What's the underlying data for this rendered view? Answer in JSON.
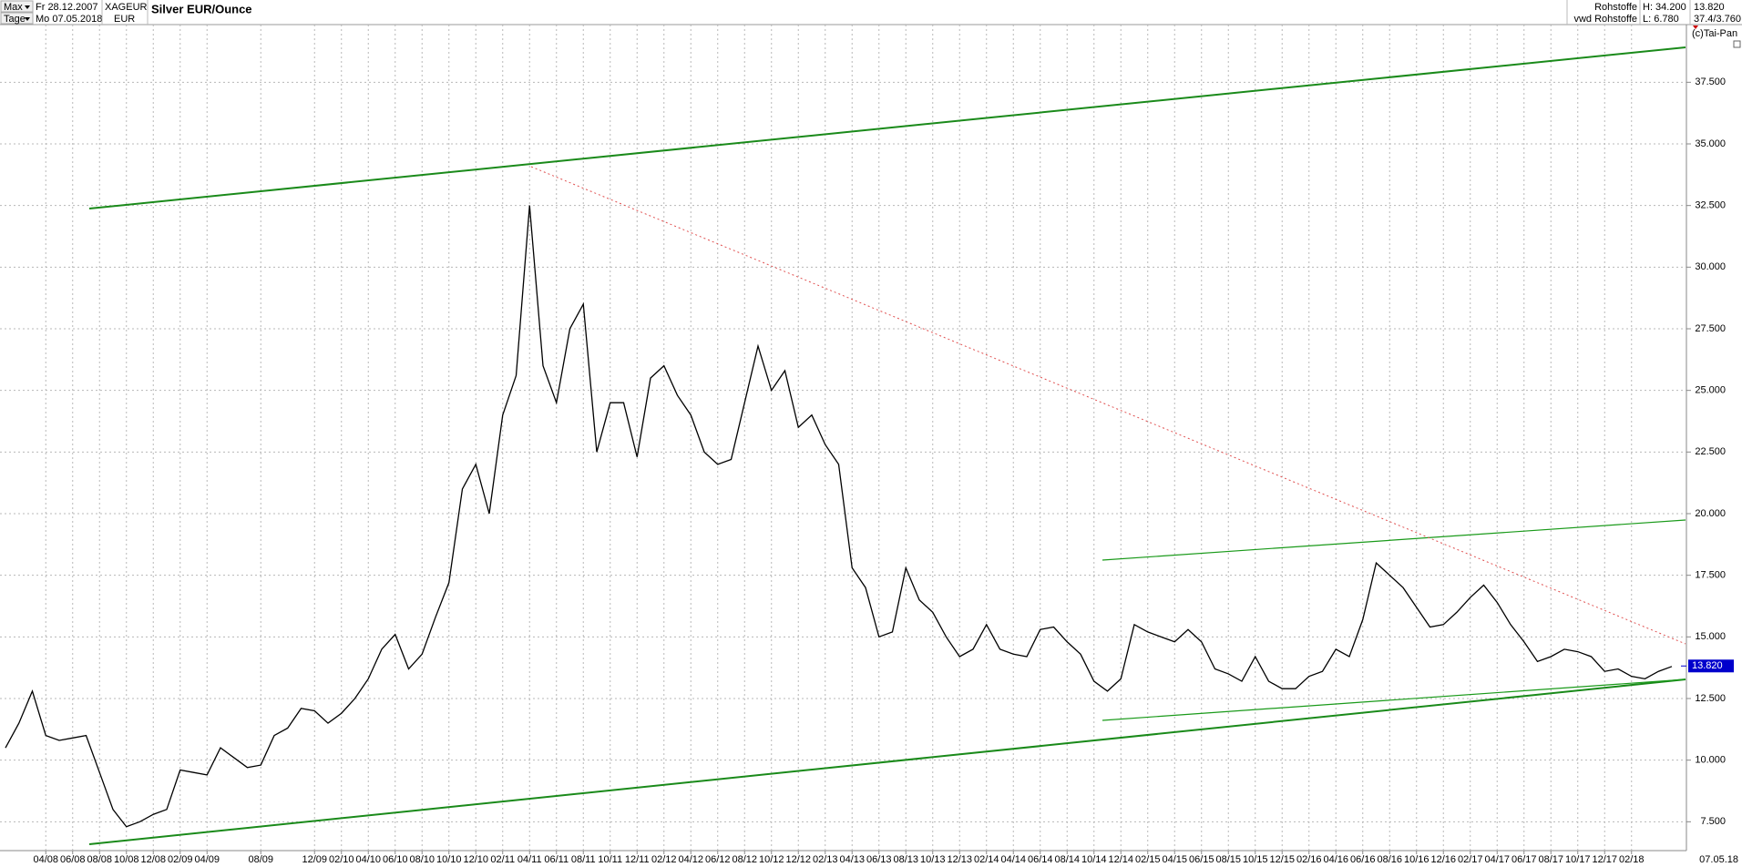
{
  "header": {
    "period": "Max",
    "unit": "Tage",
    "start_date": "Fr 28.12.2007",
    "end_date": "Mo 07.05.2018",
    "symbol": "XAGEUR",
    "currency": "EUR",
    "source_group": "Rohstoffe",
    "source": "vwd Rohstoffe",
    "high": "H: 34.200",
    "low": "L: 6.780",
    "scale_info": "37.4/3.760",
    "copyright": "(c)Tai-Pan"
  },
  "chart_data": {
    "type": "line",
    "title": "Silver EUR/Ounce",
    "color": "#000000",
    "grid": true,
    "categories": [
      null,
      null,
      null,
      "04/08",
      null,
      "06/08",
      null,
      "08/08",
      null,
      "10/08",
      null,
      "12/08",
      null,
      "02/09",
      null,
      "04/09",
      null,
      null,
      null,
      "08/09",
      null,
      null,
      null,
      "12/09",
      null,
      "02/10",
      null,
      "04/10",
      null,
      "06/10",
      null,
      "08/10",
      null,
      "10/10",
      null,
      "12/10",
      null,
      "02/11",
      null,
      "04/11",
      null,
      "06/11",
      null,
      "08/11",
      null,
      "10/11",
      null,
      "12/11",
      null,
      "02/12",
      null,
      "04/12",
      null,
      "06/12",
      null,
      "08/12",
      null,
      "10/12",
      null,
      "12/12",
      null,
      "02/13",
      null,
      "04/13",
      null,
      "06/13",
      null,
      "08/13",
      null,
      "10/13",
      null,
      "12/13",
      null,
      "02/14",
      null,
      "04/14",
      null,
      "06/14",
      null,
      "08/14",
      null,
      "10/14",
      null,
      "12/14",
      null,
      "02/15",
      null,
      "04/15",
      null,
      "06/15",
      null,
      "08/15",
      null,
      "10/15",
      null,
      "12/15",
      null,
      "02/16",
      null,
      "04/16",
      null,
      "06/16",
      null,
      "08/16",
      null,
      "10/16",
      null,
      "12/16",
      null,
      "02/17",
      null,
      "04/17",
      null,
      "06/17",
      null,
      "08/17",
      null,
      "10/17",
      null,
      "12/17",
      null,
      "02/18",
      null,
      null,
      null
    ],
    "values": [
      10.5,
      11.5,
      12.8,
      11.0,
      10.8,
      10.9,
      11.0,
      9.5,
      8.0,
      7.3,
      7.5,
      7.8,
      8.0,
      9.6,
      9.5,
      9.4,
      10.5,
      10.1,
      9.7,
      9.8,
      11.0,
      11.3,
      12.1,
      12.0,
      11.5,
      11.9,
      12.5,
      13.3,
      14.5,
      15.1,
      13.7,
      14.3,
      15.8,
      17.2,
      21.0,
      22.0,
      20.0,
      24.0,
      25.6,
      32.5,
      26.0,
      24.5,
      27.5,
      28.5,
      22.5,
      24.5,
      24.5,
      22.3,
      25.5,
      26.0,
      24.8,
      24.0,
      22.5,
      22.0,
      22.2,
      24.5,
      26.8,
      25.0,
      25.8,
      23.5,
      24.0,
      22.8,
      22.0,
      17.8,
      17.0,
      15.0,
      15.2,
      17.8,
      16.5,
      16.0,
      15.0,
      14.2,
      14.5,
      15.5,
      14.5,
      14.3,
      14.2,
      15.3,
      15.4,
      14.8,
      14.3,
      13.2,
      12.8,
      13.3,
      15.5,
      15.2,
      15.0,
      14.8,
      15.3,
      14.8,
      13.7,
      13.5,
      13.2,
      14.2,
      13.2,
      12.9,
      12.9,
      13.4,
      13.6,
      14.5,
      14.2,
      15.7,
      18.0,
      17.5,
      17.0,
      16.2,
      15.4,
      15.5,
      16.0,
      16.6,
      17.1,
      16.4,
      15.5,
      14.8,
      14.0,
      14.2,
      14.5,
      14.4,
      14.2,
      13.6,
      13.7,
      13.4,
      13.3,
      13.6,
      13.8
    ],
    "ylim": [
      6.33,
      39.84
    ],
    "yticks": [
      {
        "value": 7.5,
        "label": "7.500"
      },
      {
        "value": 10,
        "label": "10.000"
      },
      {
        "value": 12.5,
        "label": "12.500"
      },
      {
        "value": 15,
        "label": "15.000"
      },
      {
        "value": 17.5,
        "label": "17.500"
      },
      {
        "value": 20,
        "label": "20.000"
      },
      {
        "value": 22.5,
        "label": "22.500"
      },
      {
        "value": 25,
        "label": "25.000"
      },
      {
        "value": 27.5,
        "label": "27.500"
      },
      {
        "value": 30,
        "label": "30.000"
      },
      {
        "value": 32.5,
        "label": "32.500"
      },
      {
        "value": 35,
        "label": "35.000"
      },
      {
        "value": 37.5,
        "label": "37.500"
      }
    ],
    "last_price": {
      "value": 13.82,
      "label": "13.820"
    },
    "x_end_label": "07.05.18"
  }
}
